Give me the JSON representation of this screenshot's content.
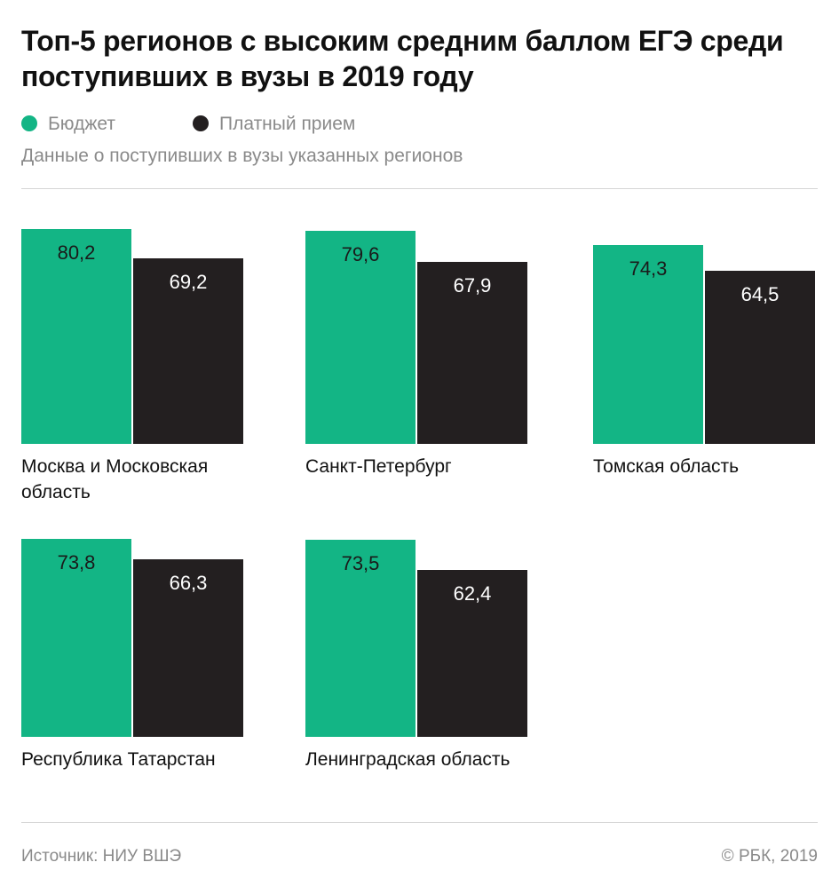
{
  "title": "Топ-5 регионов с высоким средним баллом ЕГЭ среди поступивших в вузы в 2019 году",
  "legend": [
    {
      "label": "Бюджет",
      "color": "#13b585"
    },
    {
      "label": "Платный прием",
      "color": "#231f20"
    }
  ],
  "subtitle": "Данные о поступивших в вузы указанных регионов",
  "chart_data": {
    "type": "bar",
    "categories": [
      "Москва и Московская область",
      "Санкт-Петербург",
      "Томская область",
      "Республика Татарстан",
      "Ленинградская область"
    ],
    "series": [
      {
        "name": "Бюджет",
        "color": "#13b585",
        "values": [
          80.2,
          79.6,
          74.3,
          73.8,
          73.5
        ],
        "labels": [
          "80,2",
          "79,6",
          "74,3",
          "73,8",
          "73,5"
        ]
      },
      {
        "name": "Платный прием",
        "color": "#231f20",
        "values": [
          69.2,
          67.9,
          64.5,
          66.3,
          62.4
        ],
        "labels": [
          "69,2",
          "67,9",
          "64,5",
          "66,3",
          "62,4"
        ]
      }
    ],
    "ylim": [
      0,
      80.2
    ]
  },
  "footer": {
    "source": "Источник: НИУ ВШЭ",
    "copyright": "© РБК, 2019"
  }
}
